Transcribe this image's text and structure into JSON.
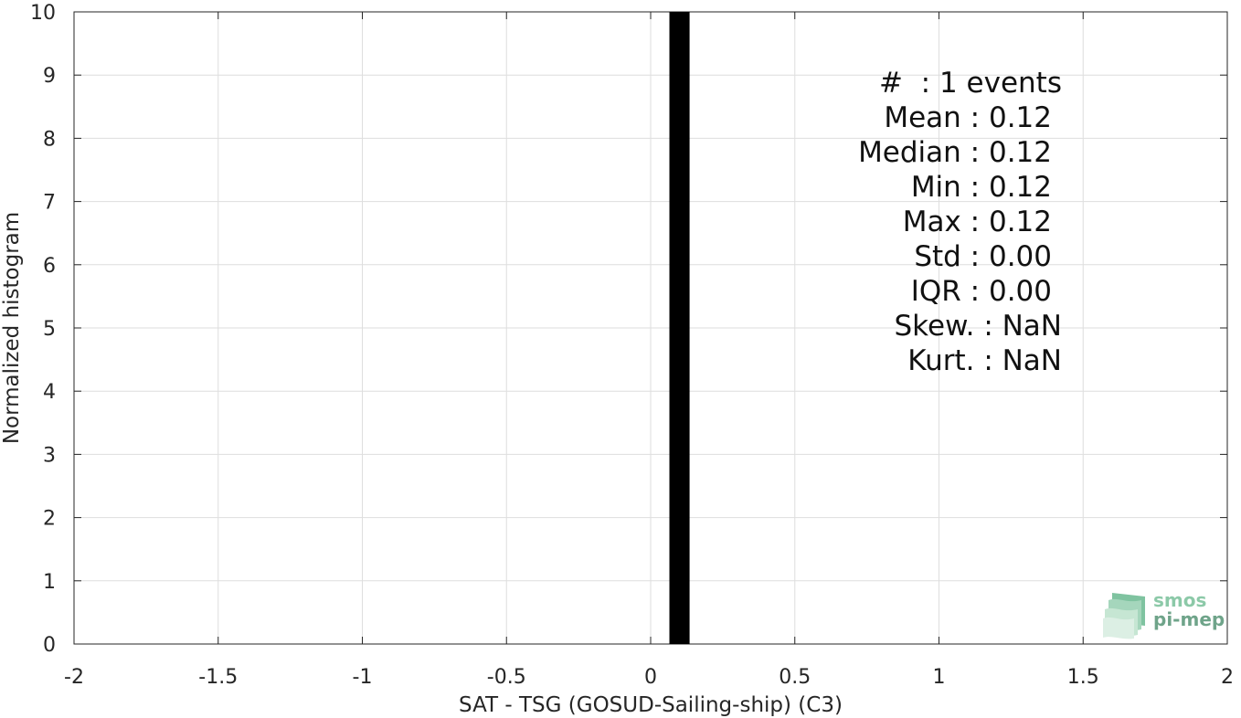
{
  "chart_data": {
    "type": "bar",
    "xlabel": "SAT - TSG (GOSUD-Sailing-ship) (C3)",
    "ylabel": "Normalized histogram",
    "xlim": [
      -2,
      2
    ],
    "ylim": [
      0,
      10
    ],
    "grid": true,
    "xticks": [
      "-2",
      "-1.5",
      "-1",
      "-0.5",
      "0",
      "0.5",
      "1",
      "1.5",
      "2"
    ],
    "yticks": [
      "0",
      "1",
      "2",
      "3",
      "4",
      "5",
      "6",
      "7",
      "8",
      "9",
      "10"
    ],
    "bars": [
      {
        "x_start": 0.065,
        "x_end": 0.135,
        "value": 10
      }
    ],
    "bar_color": "#000000",
    "stats": [
      "#  : 1 events",
      "Mean : 0.12",
      "Median : 0.12",
      "Min : 0.12",
      "Max : 0.12",
      "Std : 0.00",
      "IQR : 0.00",
      "Skew. : NaN",
      "Kurt. : NaN"
    ]
  },
  "logo": {
    "line1": "smos",
    "line2": "pi-mep"
  }
}
